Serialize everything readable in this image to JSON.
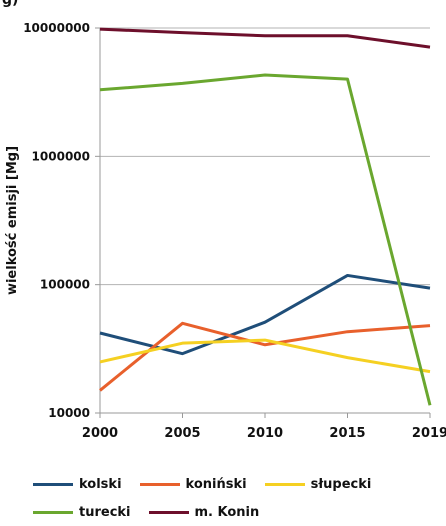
{
  "panel": {
    "label": "g)"
  },
  "chart_data": {
    "type": "line",
    "ylabel": "wielkość emisji [Mg]",
    "xlabel": "",
    "title": "",
    "x": [
      "2000",
      "2005",
      "2010",
      "2015",
      "2019"
    ],
    "y_scale": "log",
    "ylim": [
      10000,
      10000000
    ],
    "y_ticks": [
      "10000",
      "100000",
      "1000000",
      "10000000"
    ],
    "grid": "horizontal major lines",
    "legend_position": "bottom",
    "series": [
      {
        "name": "kolski",
        "color": "#1f4e79",
        "values": [
          42000,
          29000,
          51000,
          118000,
          94000
        ]
      },
      {
        "name": "koniński",
        "color": "#e8602c",
        "values": [
          15000,
          50000,
          34000,
          43000,
          48000
        ]
      },
      {
        "name": "słupecki",
        "color": "#f5d022",
        "values": [
          25000,
          35000,
          37000,
          27000,
          21000
        ]
      },
      {
        "name": "turecki",
        "color": "#6aa72f",
        "values": [
          3300000,
          3700000,
          4300000,
          4000000,
          11500
        ]
      },
      {
        "name": "m. Konin",
        "color": "#6d0f2b",
        "values": [
          9800000,
          9200000,
          8700000,
          8700000,
          7100000
        ]
      }
    ]
  }
}
